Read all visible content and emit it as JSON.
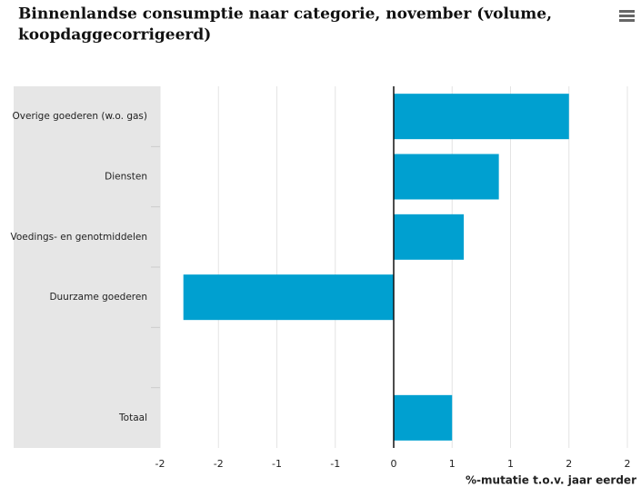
{
  "chart_data": {
    "type": "hbar",
    "title_lines": [
      "Binnenlandse consumptie naar categorie, november (volume,",
      "koopdaggecorrigeerd)"
    ],
    "categories": [
      "Overige goederen (w.o. gas)",
      "Diensten",
      "Voedings- en genotmiddelen",
      "Duurzame goederen",
      null,
      "Totaal"
    ],
    "values": [
      1.5,
      0.9,
      0.6,
      -1.8,
      null,
      0.5
    ],
    "color": "#00a0d0",
    "xlabel": "%-mutatie t.o.v. jaar eerder",
    "xlim": [
      -2,
      2
    ],
    "xticks": [
      -2,
      {
        "value": -1.5,
        "label": "-2"
      },
      -1,
      {
        "value": -0.5,
        "label": "-1"
      },
      0,
      {
        "value": 0.5,
        "label": "1"
      },
      1,
      {
        "value": 1.5,
        "label": "2"
      },
      2
    ],
    "grid": true
  }
}
